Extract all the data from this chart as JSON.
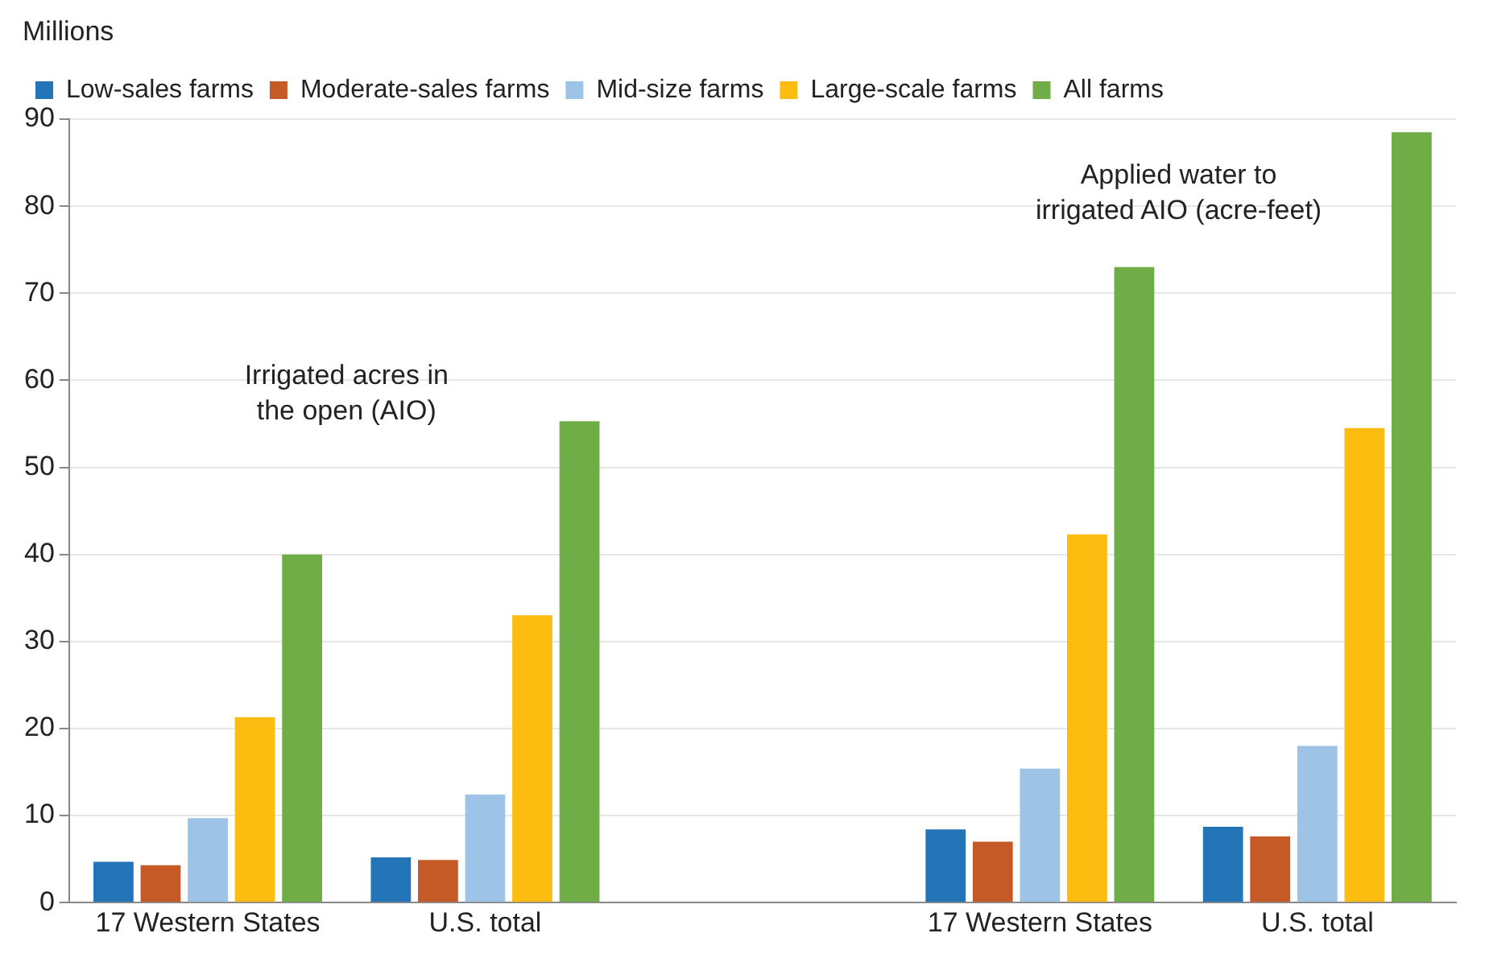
{
  "chart_data": {
    "type": "bar",
    "ylabel": "Millions",
    "categories": [
      "17 Western States",
      "U.S. total",
      null,
      "17 Western States",
      "U.S. total"
    ],
    "series": [
      {
        "name": "Low-sales farms",
        "color": "#2474b8",
        "values": [
          4.7,
          5.2,
          null,
          8.4,
          8.7
        ]
      },
      {
        "name": "Moderate-sales farms",
        "color": "#c55a26",
        "values": [
          4.3,
          4.9,
          null,
          7.0,
          7.6
        ]
      },
      {
        "name": "Mid-size farms",
        "color": "#9dc3e6",
        "values": [
          9.7,
          12.4,
          null,
          15.4,
          18.0
        ]
      },
      {
        "name": "Large-scale farms",
        "color": "#fdbd10",
        "values": [
          21.3,
          33.0,
          null,
          42.3,
          54.5
        ]
      },
      {
        "name": "All farms",
        "color": "#70ad47",
        "values": [
          40.0,
          55.3,
          null,
          73.0,
          88.5
        ]
      }
    ],
    "ylim": [
      0,
      90
    ],
    "yticks": [
      0,
      10,
      20,
      30,
      40,
      50,
      60,
      70,
      80,
      90
    ],
    "grid": "y",
    "legend": "top left",
    "annotations": [
      "Irrigated acres in the open (AIO)",
      "Applied water to irrigated AIO (acre-feet)"
    ]
  }
}
